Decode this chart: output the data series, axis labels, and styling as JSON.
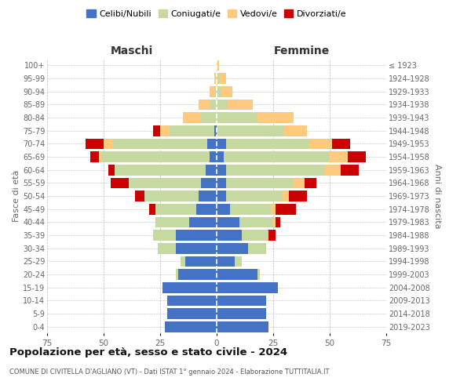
{
  "age_groups": [
    "0-4",
    "5-9",
    "10-14",
    "15-19",
    "20-24",
    "25-29",
    "30-34",
    "35-39",
    "40-44",
    "45-49",
    "50-54",
    "55-59",
    "60-64",
    "65-69",
    "70-74",
    "75-79",
    "80-84",
    "85-89",
    "90-94",
    "95-99",
    "100+"
  ],
  "birth_years": [
    "2019-2023",
    "2014-2018",
    "2009-2013",
    "2004-2008",
    "1999-2003",
    "1994-1998",
    "1989-1993",
    "1984-1988",
    "1979-1983",
    "1974-1978",
    "1969-1973",
    "1964-1968",
    "1959-1963",
    "1954-1958",
    "1949-1953",
    "1944-1948",
    "1939-1943",
    "1934-1938",
    "1929-1933",
    "1924-1928",
    "≤ 1923"
  ],
  "colors": {
    "celibe": "#4472c4",
    "coniugato": "#c5d9a0",
    "vedovo": "#ffc97e",
    "divorziato": "#cc0000"
  },
  "males": {
    "celibe": [
      23,
      22,
      22,
      24,
      17,
      14,
      18,
      18,
      12,
      9,
      8,
      7,
      5,
      3,
      4,
      1,
      0,
      0,
      0,
      0,
      0
    ],
    "coniugato": [
      0,
      0,
      0,
      0,
      1,
      2,
      8,
      10,
      15,
      18,
      24,
      32,
      40,
      48,
      42,
      20,
      7,
      3,
      1,
      0,
      0
    ],
    "vedovo": [
      0,
      0,
      0,
      0,
      0,
      0,
      0,
      0,
      0,
      0,
      0,
      0,
      0,
      1,
      4,
      4,
      8,
      5,
      2,
      1,
      0
    ],
    "divorziato": [
      0,
      0,
      0,
      0,
      0,
      0,
      0,
      0,
      0,
      3,
      4,
      8,
      3,
      4,
      8,
      3,
      0,
      0,
      0,
      0,
      0
    ]
  },
  "females": {
    "nubile": [
      23,
      22,
      22,
      27,
      18,
      8,
      14,
      11,
      10,
      6,
      4,
      4,
      4,
      3,
      4,
      0,
      0,
      0,
      0,
      0,
      0
    ],
    "coniugata": [
      0,
      0,
      0,
      0,
      1,
      3,
      8,
      12,
      15,
      18,
      25,
      30,
      44,
      47,
      37,
      30,
      18,
      5,
      2,
      1,
      0
    ],
    "vedova": [
      0,
      0,
      0,
      0,
      0,
      0,
      0,
      0,
      1,
      2,
      3,
      5,
      7,
      8,
      10,
      10,
      16,
      11,
      5,
      3,
      1
    ],
    "divorziata": [
      0,
      0,
      0,
      0,
      0,
      0,
      0,
      3,
      2,
      9,
      8,
      5,
      8,
      8,
      8,
      0,
      0,
      0,
      0,
      0,
      0
    ]
  },
  "title": "Popolazione per età, sesso e stato civile - 2024",
  "subtitle": "COMUNE DI CIVITELLA D'AGLIANO (VT) - Dati ISTAT 1° gennaio 2024 - Elaborazione TUTTITALIA.IT",
  "xlabel_left": "Maschi",
  "xlabel_right": "Femmine",
  "ylabel_left": "Fasce di età",
  "ylabel_right": "Anni di nascita",
  "xlim": 75,
  "legend_labels": [
    "Celibi/Nubili",
    "Coniugati/e",
    "Vedovi/e",
    "Divorziati/e"
  ],
  "bg_color": "#ffffff",
  "grid_color": "#bbbbbb"
}
